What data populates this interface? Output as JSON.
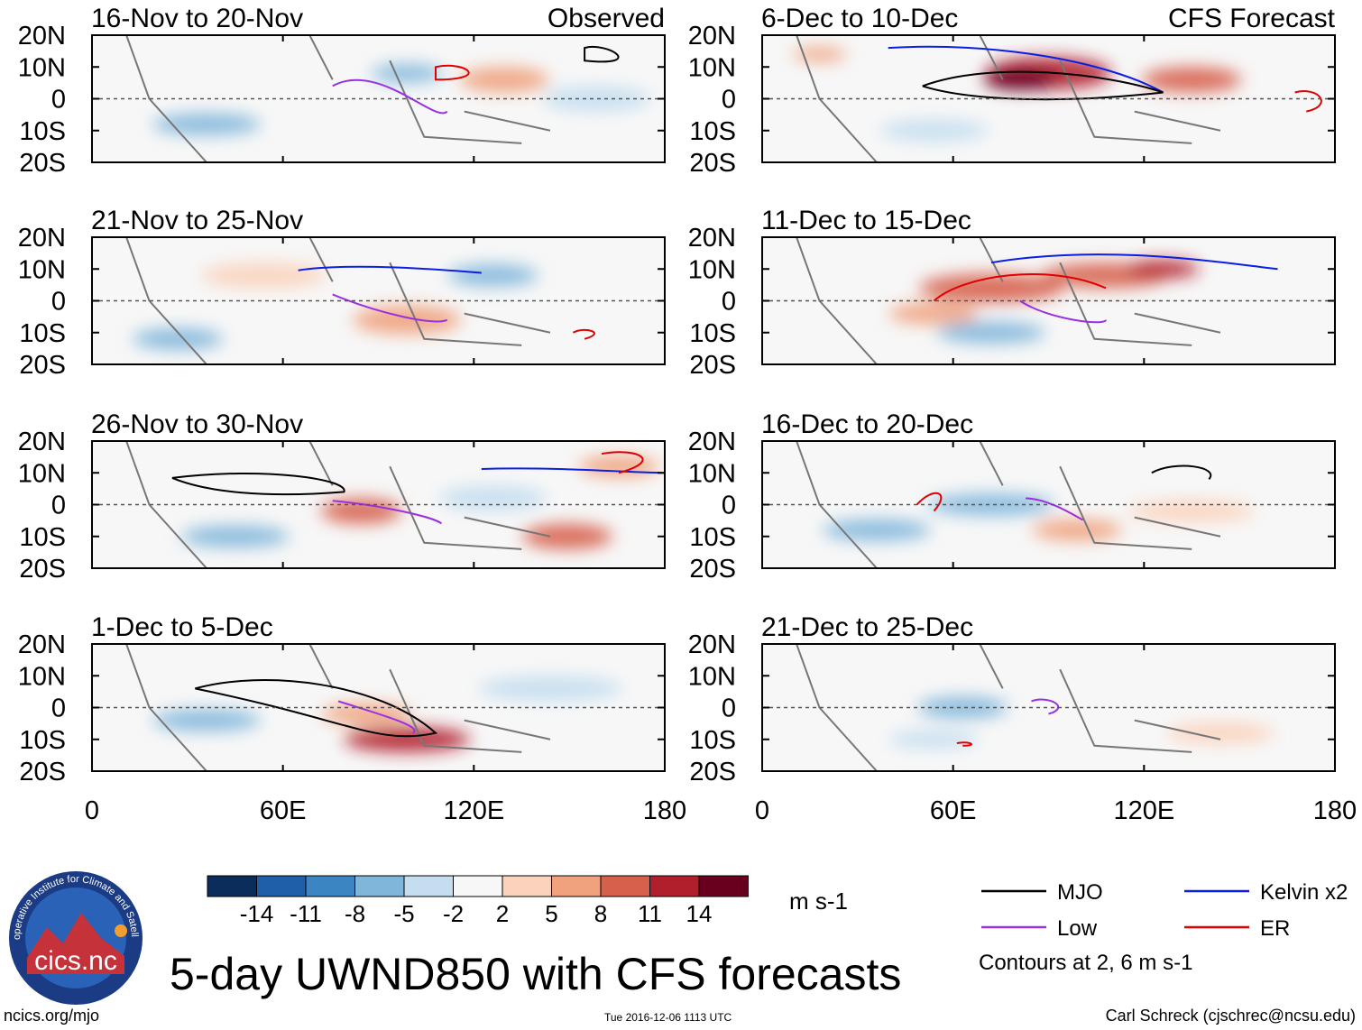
{
  "chart_data": {
    "type": "heatmap",
    "title": "5-day UWND850 with CFS forecasts",
    "variable": "850-hPa zonal wind anomaly, 5-day mean",
    "units": "m s-1",
    "x_axis": {
      "ticks": [
        0,
        60,
        120,
        180
      ],
      "tick_labels": [
        "0",
        "60E",
        "120E",
        "180"
      ],
      "xlim": [
        0,
        180
      ]
    },
    "y_axis": {
      "ticks": [
        20,
        10,
        0,
        -10,
        -20
      ],
      "tick_labels": [
        "20N",
        "10N",
        "0",
        "10S",
        "20S"
      ],
      "ylim": [
        -20,
        20
      ]
    },
    "column_labels": {
      "left": "Observed",
      "right": "CFS Forecast"
    },
    "panels": [
      {
        "period": "16-Nov to 20-Nov",
        "column": "left",
        "row": 1,
        "source": "Observed"
      },
      {
        "period": "21-Nov to 25-Nov",
        "column": "left",
        "row": 2,
        "source": "Observed"
      },
      {
        "period": "26-Nov to 30-Nov",
        "column": "left",
        "row": 3,
        "source": "Observed"
      },
      {
        "period": "1-Dec to 5-Dec",
        "column": "left",
        "row": 4,
        "source": "Observed"
      },
      {
        "period": "6-Dec to 10-Dec",
        "column": "right",
        "row": 1,
        "source": "CFS Forecast"
      },
      {
        "period": "11-Dec to 15-Dec",
        "column": "right",
        "row": 2,
        "source": "CFS Forecast"
      },
      {
        "period": "16-Dec to 20-Dec",
        "column": "right",
        "row": 3,
        "source": "CFS Forecast"
      },
      {
        "period": "21-Dec to 25-Dec",
        "column": "right",
        "row": 4,
        "source": "CFS Forecast"
      }
    ],
    "colorbar": {
      "levels": [
        -14,
        -11,
        -8,
        -5,
        -2,
        2,
        5,
        8,
        11,
        14
      ],
      "colors": [
        "#0b2d5c",
        "#1f5ea8",
        "#3b86c2",
        "#7fb6da",
        "#c4def0",
        "#f7f7f7",
        "#fbd3bd",
        "#f0a27e",
        "#d7604d",
        "#b21f2c",
        "#67001f"
      ],
      "units_label": "m s-1"
    },
    "legend": {
      "entries": [
        {
          "label": "MJO",
          "color": "#000000"
        },
        {
          "label": "Kelvin x2",
          "color": "#0a1ee6"
        },
        {
          "label": "Low",
          "color": "#9b30e0"
        },
        {
          "label": "ER",
          "color": "#e00000"
        }
      ],
      "note": "Contours at 2, 6 m s-1"
    }
  },
  "logo": {
    "text": "cics.nc",
    "arc_text": "Cooperative Institute for Climate and Satellites"
  },
  "footer": {
    "url": "ncics.org/mjo",
    "timestamp": "Tue 2016-12-06 1113 UTC",
    "author": "Carl Schreck (cjschrec@ncsu.edu)"
  }
}
